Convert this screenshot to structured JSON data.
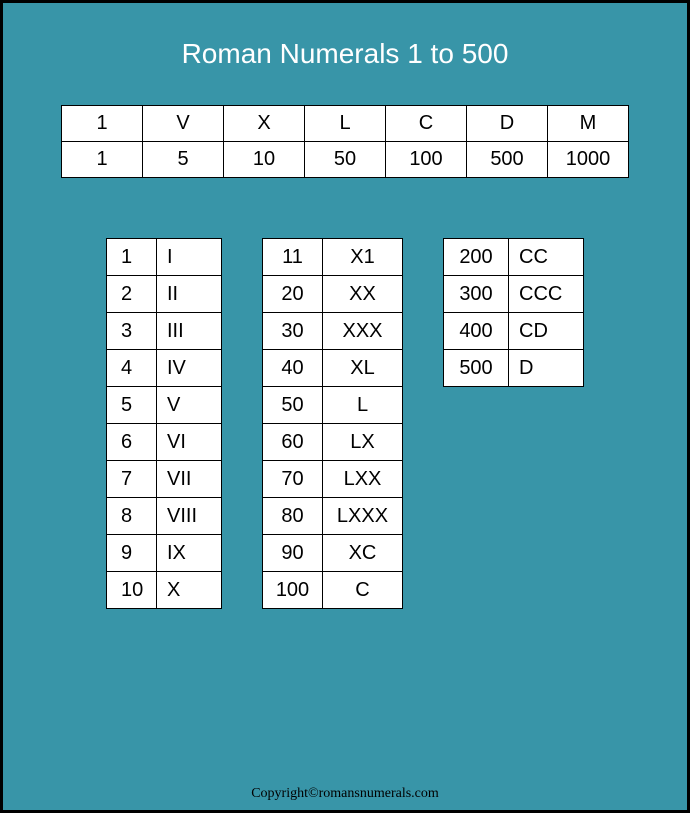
{
  "title": "Roman Numerals 1 to 500",
  "copyright": "Copyright©romansnumerals.com",
  "legend": {
    "symbols": [
      "1",
      "V",
      "X",
      "L",
      "C",
      "D",
      "M"
    ],
    "values": [
      "1",
      "5",
      "10",
      "50",
      "100",
      "500",
      "1000"
    ]
  },
  "table1": [
    {
      "n": "1",
      "r": "I"
    },
    {
      "n": "2",
      "r": "II"
    },
    {
      "n": "3",
      "r": "III"
    },
    {
      "n": "4",
      "r": "IV"
    },
    {
      "n": "5",
      "r": "V"
    },
    {
      "n": "6",
      "r": "VI"
    },
    {
      "n": "7",
      "r": "VII"
    },
    {
      "n": "8",
      "r": "VIII"
    },
    {
      "n": "9",
      "r": "IX"
    },
    {
      "n": "10",
      "r": "X"
    }
  ],
  "table2": [
    {
      "n": "11",
      "r": "X1"
    },
    {
      "n": "20",
      "r": "XX"
    },
    {
      "n": "30",
      "r": "XXX"
    },
    {
      "n": "40",
      "r": "XL"
    },
    {
      "n": "50",
      "r": "L"
    },
    {
      "n": "60",
      "r": "LX"
    },
    {
      "n": "70",
      "r": "LXX"
    },
    {
      "n": "80",
      "r": "LXXX"
    },
    {
      "n": "90",
      "r": "XC"
    },
    {
      "n": "100",
      "r": "C"
    }
  ],
  "table3": [
    {
      "n": "200",
      "r": "CC"
    },
    {
      "n": "300",
      "r": "CCC"
    },
    {
      "n": "400",
      "r": "CD"
    },
    {
      "n": "500",
      "r": "D"
    }
  ],
  "colors": {
    "background": "#3895a8",
    "border": "#000000",
    "cell_bg": "#ffffff",
    "title_color": "#ffffff"
  }
}
